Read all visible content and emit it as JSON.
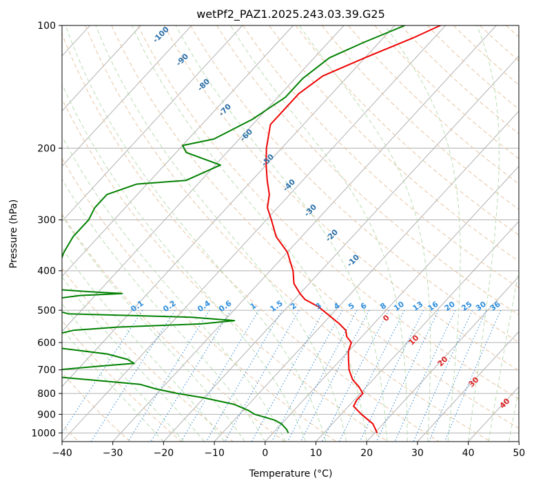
{
  "chart_data": {
    "type": "line",
    "title": "wetPf2_PAZ1.2025.243.03.39.G25",
    "xlabel": "Temperature (°C)",
    "ylabel": "Pressure (hPa)",
    "xlim": [
      -40,
      50
    ],
    "ylim": [
      1050,
      100
    ],
    "y_scale": "log",
    "skew": true,
    "grid": true,
    "x_ticks": [
      -40,
      -30,
      -20,
      -10,
      0,
      10,
      20,
      30,
      40,
      50
    ],
    "y_ticks": [
      100,
      200,
      300,
      400,
      500,
      600,
      700,
      800,
      900,
      1000
    ],
    "dry_adiabat_labels": [
      "-100",
      "-90",
      "-80",
      "-70",
      "-60",
      "-50",
      "-40",
      "-30",
      "-20",
      "-10"
    ],
    "moist_adiabat_labels": [
      "0",
      "10",
      "20",
      "30",
      "40"
    ],
    "mixing_ratio_labels": [
      "0.1",
      "0.2",
      "0.4",
      "0.6",
      "1",
      "1.5",
      "2",
      "3",
      "4",
      "5",
      "6",
      "8",
      "10",
      "13",
      "16",
      "20",
      "25",
      "30",
      "36"
    ],
    "series": [
      {
        "color": "#ee0000",
        "points": [
          [
            100,
            -41
          ],
          [
            107,
            -44
          ],
          [
            120,
            -50
          ],
          [
            133,
            -55
          ],
          [
            147,
            -56.5
          ],
          [
            160,
            -56.5
          ],
          [
            175,
            -56.5
          ],
          [
            200,
            -53
          ],
          [
            220,
            -50
          ],
          [
            240,
            -47
          ],
          [
            260,
            -44
          ],
          [
            280,
            -42
          ],
          [
            300,
            -39
          ],
          [
            330,
            -35
          ],
          [
            360,
            -30
          ],
          [
            400,
            -25.5
          ],
          [
            430,
            -23
          ],
          [
            455,
            -20
          ],
          [
            470,
            -18
          ],
          [
            490,
            -14
          ],
          [
            510,
            -11
          ],
          [
            540,
            -6.7
          ],
          [
            560,
            -4.3
          ],
          [
            580,
            -3
          ],
          [
            600,
            -1
          ],
          [
            630,
            0
          ],
          [
            660,
            1.5
          ],
          [
            700,
            3.5
          ],
          [
            740,
            6
          ],
          [
            770,
            8.5
          ],
          [
            800,
            10.5
          ],
          [
            830,
            10.5
          ],
          [
            860,
            11
          ],
          [
            900,
            14
          ],
          [
            950,
            18
          ],
          [
            1000,
            20.5
          ]
        ]
      },
      {
        "color": "#008000",
        "points": [
          [
            100,
            -48
          ],
          [
            110,
            -53
          ],
          [
            120,
            -57
          ],
          [
            135,
            -58.5
          ],
          [
            150,
            -58.5
          ],
          [
            170,
            -61
          ],
          [
            190,
            -65
          ],
          [
            197,
            -70
          ],
          [
            205,
            -68
          ],
          [
            220,
            -59
          ],
          [
            240,
            -63
          ],
          [
            245,
            -72
          ],
          [
            260,
            -76
          ],
          [
            280,
            -76
          ],
          [
            300,
            -75
          ],
          [
            330,
            -75
          ],
          [
            360,
            -74
          ],
          [
            400,
            -72
          ],
          [
            420,
            -70
          ],
          [
            445,
            -68
          ],
          [
            450,
            -62
          ],
          [
            455,
            -55
          ],
          [
            460,
            -63
          ],
          [
            470,
            -68
          ],
          [
            490,
            -67
          ],
          [
            500,
            -65
          ],
          [
            510,
            -62
          ],
          [
            520,
            -37
          ],
          [
            530,
            -28
          ],
          [
            540,
            -34
          ],
          [
            550,
            -50
          ],
          [
            560,
            -58
          ],
          [
            580,
            -62
          ],
          [
            610,
            -63
          ],
          [
            620,
            -57
          ],
          [
            640,
            -47
          ],
          [
            660,
            -42
          ],
          [
            675,
            -40
          ],
          [
            685,
            -46
          ],
          [
            700,
            -54
          ],
          [
            720,
            -58
          ],
          [
            740,
            -46
          ],
          [
            760,
            -35
          ],
          [
            780,
            -31
          ],
          [
            800,
            -26
          ],
          [
            820,
            -20
          ],
          [
            850,
            -13
          ],
          [
            880,
            -9
          ],
          [
            900,
            -7
          ],
          [
            930,
            -2
          ],
          [
            950,
            0
          ],
          [
            980,
            2
          ],
          [
            1000,
            3
          ]
        ]
      }
    ]
  }
}
